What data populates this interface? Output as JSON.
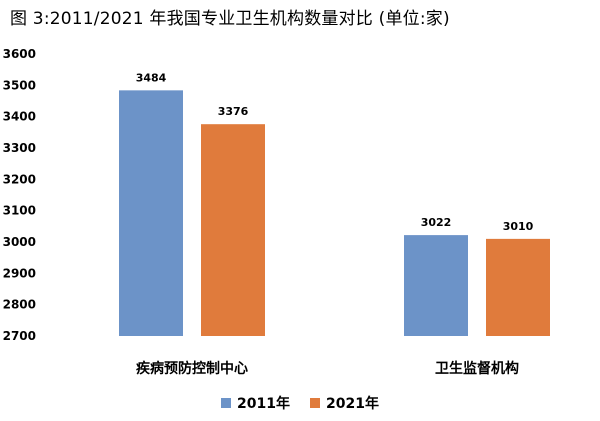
{
  "title": "图 3:2011/2021 年我国专业卫生机构数量对比    (单位:家)",
  "chart_data": {
    "type": "bar",
    "title": "图 3:2011/2021 年我国专业卫生机构数量对比    (单位:家)",
    "categories": [
      "疾病预防控制中心",
      "卫生监督机构"
    ],
    "series": [
      {
        "name": "2011年",
        "color": "#6c93c8",
        "values": [
          3484,
          3022
        ]
      },
      {
        "name": "2021年",
        "color": "#e07b3c",
        "values": [
          3376,
          3010
        ]
      }
    ],
    "ylim": [
      2700,
      3600
    ],
    "yticks": [
      2700,
      2800,
      2900,
      3000,
      3100,
      3200,
      3300,
      3400,
      3500,
      3600
    ],
    "grid": false,
    "legend": "bottom-center",
    "data_labels": true,
    "xlabel": "",
    "ylabel": ""
  }
}
